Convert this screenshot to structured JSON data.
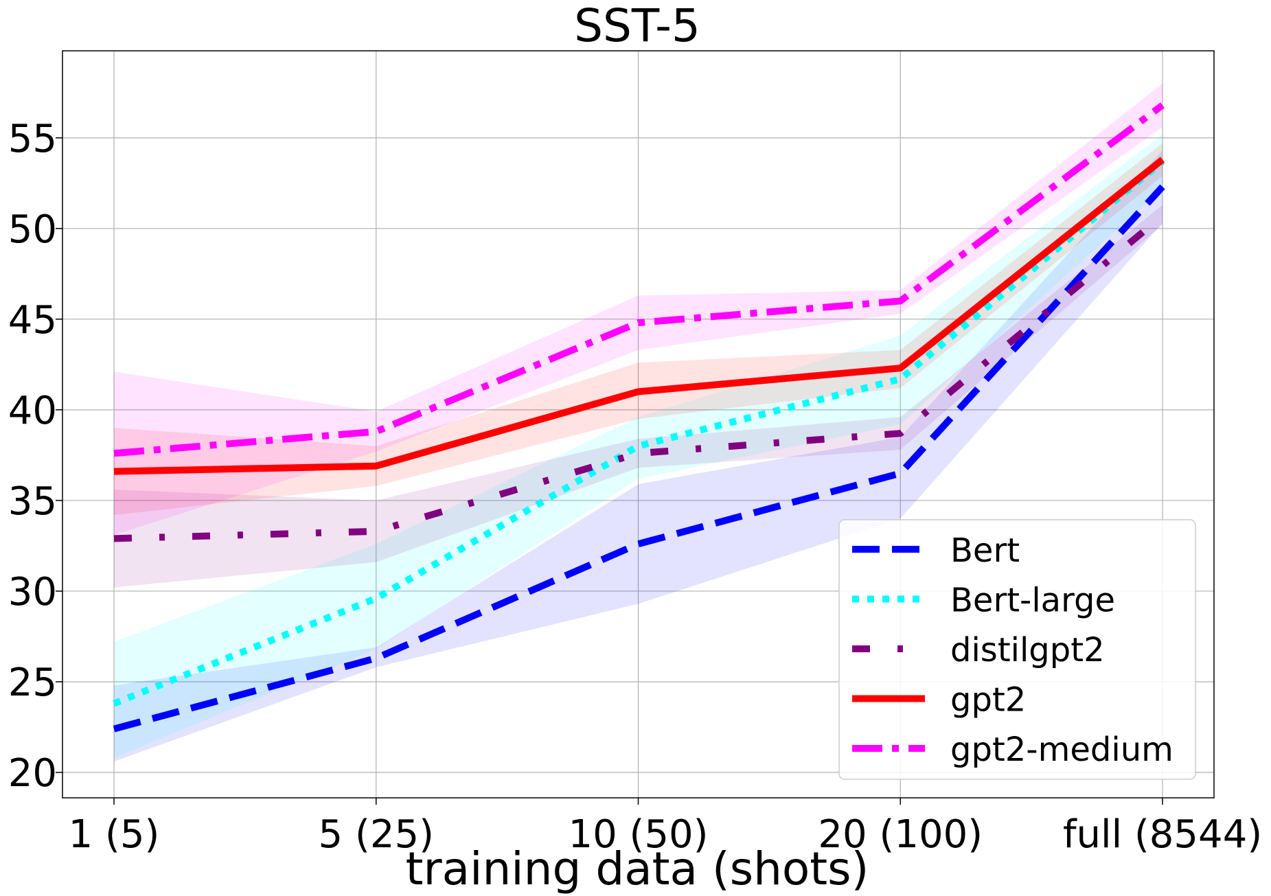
{
  "chart_data": {
    "type": "line",
    "title": "SST-5",
    "xlabel": "training data (shots)",
    "ylabel": "",
    "categories": [
      "1 (5)",
      "5 (25)",
      "10 (50)",
      "20 (100)",
      "full (8544)"
    ],
    "yticks": [
      20,
      25,
      30,
      35,
      40,
      45,
      50,
      55
    ],
    "ylim": [
      18.6,
      59.8
    ],
    "grid": true,
    "legend_position": "lower-right",
    "series": [
      {
        "name": "Bert",
        "color": "#0000ff",
        "line_style": "dashed",
        "values": [
          22.4,
          26.3,
          32.6,
          36.5,
          52.3
        ],
        "lower": [
          20.6,
          25.8,
          29.3,
          34.0,
          50.3
        ],
        "upper": [
          24.8,
          26.9,
          35.9,
          38.5,
          54.3
        ]
      },
      {
        "name": "Bert-large",
        "color": "#00ffff",
        "line_style": "dotted",
        "values": [
          23.8,
          29.6,
          38.0,
          41.7,
          53.7
        ],
        "lower": [
          20.8,
          26.8,
          36.2,
          39.2,
          52.2
        ],
        "upper": [
          27.2,
          32.6,
          39.6,
          44.1,
          55.2
        ]
      },
      {
        "name": "distilgpt2",
        "color": "#800080",
        "line_style": "dash-dot-sparse",
        "values": [
          32.9,
          33.3,
          37.6,
          38.7,
          50.7
        ],
        "lower": [
          30.2,
          31.6,
          36.8,
          37.8,
          50.2
        ],
        "upper": [
          35.6,
          35.0,
          38.4,
          39.6,
          51.3
        ]
      },
      {
        "name": "gpt2",
        "color": "#ff0000",
        "line_style": "solid",
        "values": [
          36.6,
          36.9,
          41.0,
          42.3,
          53.8
        ],
        "lower": [
          34.2,
          35.8,
          39.5,
          41.2,
          52.9
        ],
        "upper": [
          39.0,
          38.0,
          42.6,
          43.3,
          54.7
        ]
      },
      {
        "name": "gpt2-medium",
        "color": "#ff00ff",
        "line_style": "dash-dot",
        "values": [
          37.6,
          38.8,
          44.8,
          46.0,
          56.8
        ],
        "lower": [
          33.1,
          37.7,
          43.3,
          45.3,
          55.6
        ],
        "upper": [
          42.1,
          39.9,
          46.3,
          46.6,
          58.0
        ]
      }
    ]
  }
}
